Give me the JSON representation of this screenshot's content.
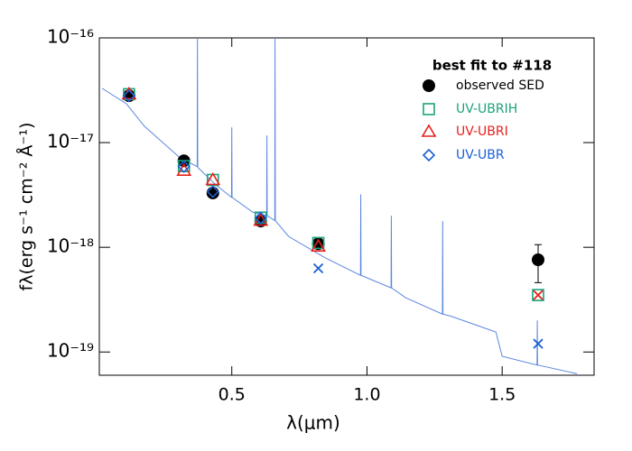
{
  "chart_data": {
    "type": "sed",
    "xlabel": "λ(μm)",
    "ylabel": "fλ(erg s⁻¹ cm⁻² Å⁻¹)",
    "legend_title": "best fit to #118",
    "legend": "upper right",
    "yscale": "log",
    "xlim": [
      0.01,
      1.84
    ],
    "ylim": [
      6e-20,
      1e-16
    ],
    "xticks": [
      0.5,
      {
        "value": 1,
        "label": "1.0"
      },
      1.5
    ],
    "yticks": [
      {
        "value": 1e-19,
        "label": "10⁻¹⁹"
      },
      {
        "value": 1e-18,
        "label": "10⁻¹⁸"
      },
      {
        "value": 1e-17,
        "label": "10⁻¹⁷"
      },
      {
        "value": 1e-16,
        "label": "10⁻¹⁶"
      }
    ],
    "spectrum": {
      "color": "#5b86e0",
      "x": [
        0.02,
        0.11,
        0.177,
        0.31,
        0.372,
        0.373,
        0.374,
        0.443,
        0.499,
        0.5,
        0.501,
        0.577,
        0.629,
        0.63,
        0.631,
        0.659,
        0.66,
        0.661,
        0.71,
        0.843,
        0.976,
        0.977,
        0.978,
        1.089,
        1.09,
        1.091,
        1.143,
        1.279,
        1.28,
        1.281,
        1.31,
        1.477,
        1.5,
        1.629,
        1.63,
        1.631,
        1.643,
        1.777
      ],
      "values": [
        3.3e-17,
        2.35e-17,
        1.43e-17,
        7.1e-18,
        5.9e-18,
        1e-16,
        5.8e-18,
        3.9e-18,
        3e-18,
        1.4e-17,
        3e-18,
        2.17e-18,
        2e-18,
        1.17e-17,
        2e-18,
        1.8e-18,
        1e-16,
        1.8e-18,
        1.27e-18,
        8e-19,
        5.4e-19,
        3.2e-18,
        5.4e-19,
        4.1e-19,
        2e-18,
        4.1e-19,
        3.3e-19,
        2.3e-19,
        1.78e-18,
        2.3e-19,
        2.2e-19,
        1.55e-19,
        9.1e-20,
        7.5e-20,
        2e-19,
        7.5e-20,
        7.4e-20,
        6.2e-20
      ]
    },
    "x": [
      0.12,
      0.323,
      0.43,
      0.607,
      0.82,
      1.633
    ],
    "series": [
      {
        "name": "observed SED",
        "color": "#000000",
        "markers": [
          "circle",
          "circle",
          "circle",
          "circle",
          "circle",
          "circle"
        ],
        "values": [
          2.8e-17,
          6.7e-18,
          3.3e-18,
          1.78e-18,
          1.08e-18,
          7.6e-19
        ],
        "errors": [
          null,
          null,
          null,
          null,
          null,
          3e-19
        ]
      },
      {
        "name": "UV-UBRIH",
        "color": "#1aa37a",
        "markers": [
          "square",
          "square",
          "square",
          "square",
          "square",
          "square"
        ],
        "values": [
          2.9e-17,
          5.97e-18,
          4.4e-18,
          1.92e-18,
          1.1e-18,
          3.5e-19
        ]
      },
      {
        "name": "UV-UBRI",
        "color": "#e8201a",
        "markers": [
          "triangle",
          "triangle",
          "triangle",
          "triangle",
          "triangle",
          "x"
        ],
        "values": [
          2.9e-17,
          5.4e-18,
          4.4e-18,
          1.8e-18,
          1.02e-18,
          3.5e-19
        ]
      },
      {
        "name": "UV-UBR",
        "color": "#1a5fd6",
        "markers": [
          "diamond",
          "diamond",
          "diamond",
          "diamond",
          "x",
          "x"
        ],
        "values": [
          2.8e-17,
          5.9e-18,
          3.4e-18,
          1.9e-18,
          6.3e-19,
          1.2e-19
        ]
      }
    ]
  }
}
